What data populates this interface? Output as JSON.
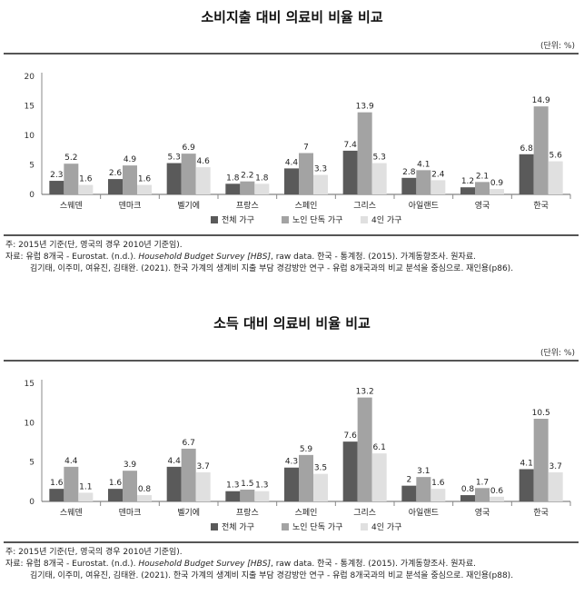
{
  "charts": [
    {
      "title": "소비지출 대비 의료비 비율 비교",
      "unit": "(단위: %)",
      "notes": {
        "line1": "주: 2015년 기준(단, 영국의 경우 2010년 기준임).",
        "line2_pre": "자료: 유럽 8개국 - Eurostat. (n.d.). ",
        "line2_ital": "Household Budget Survey [HBS]",
        "line2_post": ", raw data. 한국 - 통계청. (2015). 가계동향조사. 원자료.",
        "line3": "김기태, 이주미, 여유진, 김태완. (2021). 한국 가계의 생계비 지출 부담 경감방안 연구 - 유럽 8개국과의 비교 분석을 중심으로. 재인용(p86)."
      }
    },
    {
      "title": "소득 대비 의료비 비율 비교",
      "unit": "(단위: %)",
      "notes": {
        "line1": "주: 2015년 기준(단, 영국의 경우 2010년 기준임).",
        "line2_pre": "자료: 유럽 8개국 - Eurostat. (n.d.). ",
        "line2_ital": "Household Budget Survey [HBS]",
        "line2_post": ", raw data. 한국 - 통계청. (2015). 가계동향조사. 원자료.",
        "line3": "김기태, 이주미, 여유진, 김태완. (2021). 한국 가계의 생계비 지출 부담 경감방안 연구 - 유럽 8개국과의 비교 분석을 중심으로. 재인용(p88)."
      }
    }
  ],
  "chart_data": [
    {
      "type": "bar",
      "title": "소비지출 대비 의료비 비율 비교",
      "categories": [
        "스웨덴",
        "덴마크",
        "벨기에",
        "프랑스",
        "스페인",
        "그리스",
        "아일랜드",
        "영국",
        "한국"
      ],
      "series": [
        {
          "name": "전체 가구",
          "color": "#5a5a5a",
          "values": [
            2.3,
            2.6,
            5.3,
            1.8,
            4.4,
            7.4,
            2.8,
            1.2,
            6.8
          ]
        },
        {
          "name": "노인 단독 가구",
          "color": "#a3a3a3",
          "values": [
            5.2,
            4.9,
            6.9,
            2.2,
            7,
            13.9,
            4.1,
            2.1,
            14.9
          ]
        },
        {
          "name": "4인 가구",
          "color": "#e0e0e0",
          "values": [
            1.6,
            1.6,
            4.6,
            1.8,
            3.3,
            5.3,
            2.4,
            0.9,
            5.6
          ]
        }
      ],
      "ylim": [
        0,
        20
      ],
      "yticks": [
        0,
        5,
        10,
        15,
        20
      ],
      "legend": "bottom"
    },
    {
      "type": "bar",
      "title": "소득 대비 의료비 비율 비교",
      "categories": [
        "스웨덴",
        "덴마크",
        "벨기에",
        "프랑스",
        "스페인",
        "그리스",
        "아일랜드",
        "영국",
        "한국"
      ],
      "series": [
        {
          "name": "전체 가구",
          "color": "#5a5a5a",
          "values": [
            1.6,
            1.6,
            4.4,
            1.3,
            4.3,
            7.6,
            2,
            0.8,
            4.1
          ]
        },
        {
          "name": "노인 단독 가구",
          "color": "#a3a3a3",
          "values": [
            4.4,
            3.9,
            6.7,
            1.5,
            5.9,
            13.2,
            3.1,
            1.7,
            10.5
          ]
        },
        {
          "name": "4인 가구",
          "color": "#e0e0e0",
          "values": [
            1.1,
            0.8,
            3.7,
            1.3,
            3.5,
            6.1,
            1.6,
            0.6,
            3.7
          ]
        }
      ],
      "ylim": [
        0,
        15
      ],
      "yticks": [
        0,
        5,
        10,
        15
      ],
      "legend": "bottom"
    }
  ]
}
